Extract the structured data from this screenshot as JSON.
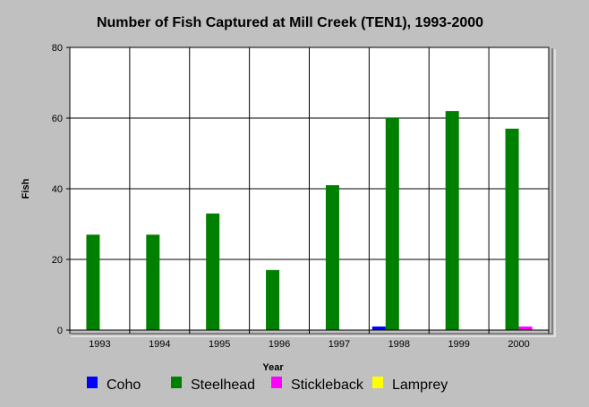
{
  "colors": {
    "background": "#c0c0c0",
    "plot_background": "#ffffff",
    "grid": "#000000",
    "coho": "#0000ff",
    "steelhead": "#008000",
    "stickleback": "#ff00ff",
    "lamprey": "#ffff00"
  },
  "chart_data": {
    "type": "bar",
    "title": "Number of Fish Captured at Mill Creek (TEN1), 1993-2000",
    "xlabel": "Year",
    "ylabel": "Fish",
    "ylim": [
      0,
      80
    ],
    "yticks": [
      0,
      20,
      40,
      60,
      80
    ],
    "grid": true,
    "legend_position": "bottom",
    "categories": [
      "1993",
      "1994",
      "1995",
      "1996",
      "1997",
      "1998",
      "1999",
      "2000"
    ],
    "series": [
      {
        "name": "Coho",
        "color": "#0000ff",
        "values": [
          0,
          0,
          0,
          0,
          0,
          1,
          0,
          0
        ]
      },
      {
        "name": "Steelhead",
        "color": "#008000",
        "values": [
          27,
          27,
          33,
          17,
          41,
          60,
          62,
          57
        ]
      },
      {
        "name": "Stickleback",
        "color": "#ff00ff",
        "values": [
          0,
          0,
          0,
          0,
          0,
          0,
          0,
          1
        ]
      },
      {
        "name": "Lamprey",
        "color": "#ffff00",
        "values": [
          0,
          0,
          0,
          0,
          0,
          0,
          0,
          0
        ]
      }
    ]
  }
}
